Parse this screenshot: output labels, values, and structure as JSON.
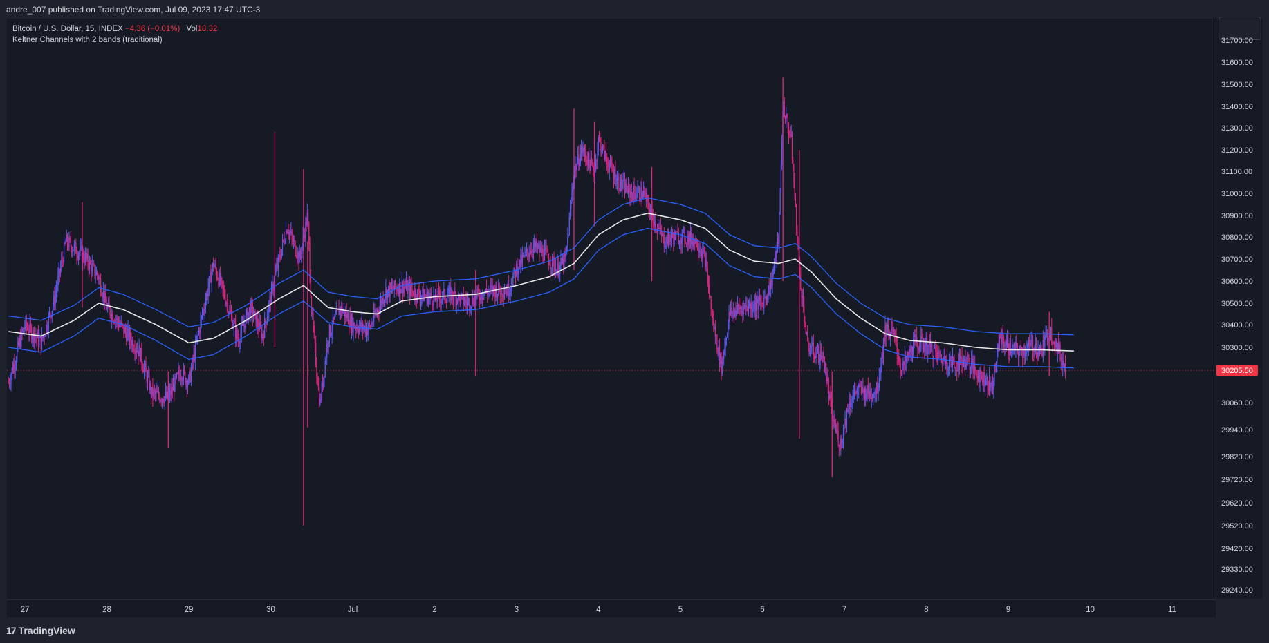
{
  "header": {
    "attribution": "andre_007 published on TradingView.com, Jul 09, 2023 17:47 UTC-3"
  },
  "legend": {
    "symbol": "Bitcoin / U.S. Dollar, 15, INDEX",
    "change": "−4.36 (−0.01%)",
    "vol_label": "Vol",
    "vol_value": "18.32",
    "indicator": "Keltner Channels with 2 bands (traditional)"
  },
  "footer": {
    "brand": "TradingView",
    "logo_glyph": "17"
  },
  "colors": {
    "background": "#161a25",
    "up_candle": "#5b5bf0",
    "down_candle": "#d8287e",
    "keltner_basis": "#e8e8e8",
    "keltner_bands": "#2962ff",
    "last_price": "#f23645"
  },
  "chart_data": {
    "type": "candlestick",
    "symbol": "Bitcoin / U.S. Dollar",
    "interval": "15",
    "exchange": "INDEX",
    "last_price": "30205.50",
    "y_tick_labels": [
      "31700.00",
      "31600.00",
      "31500.00",
      "31400.00",
      "31300.00",
      "31200.00",
      "31100.00",
      "31000.00",
      "30900.00",
      "30800.00",
      "30700.00",
      "30600.00",
      "30500.00",
      "30400.00",
      "30300.00",
      "30205.50",
      "30060.00",
      "29940.00",
      "29820.00",
      "29720.00",
      "29620.00",
      "29520.00",
      "29420.00",
      "29330.00",
      "29240.00"
    ],
    "y_tick_values": [
      31700,
      31600,
      31500,
      31400,
      31300,
      31200,
      31100,
      31000,
      30900,
      30800,
      30700,
      30600,
      30500,
      30400,
      30300,
      30205.5,
      30060,
      29940,
      29820,
      29720,
      29620,
      29520,
      29420,
      29330,
      29240
    ],
    "x_tick_labels": [
      "27",
      "28",
      "29",
      "30",
      "Jul",
      "2",
      "3",
      "4",
      "5",
      "6",
      "7",
      "8",
      "9",
      "10",
      "11"
    ],
    "x_tick_days": [
      0,
      1,
      2,
      3,
      4,
      5,
      6,
      7,
      8,
      9,
      10,
      11,
      12,
      13,
      14
    ],
    "x_day_range": [
      -0.2,
      14.5
    ],
    "y_range": [
      29170,
      31720
    ],
    "price_path": [
      [
        -0.2,
        30150
      ],
      [
        0.0,
        30400
      ],
      [
        0.2,
        30320
      ],
      [
        0.35,
        30500
      ],
      [
        0.5,
        30780
      ],
      [
        0.7,
        30720
      ],
      [
        0.9,
        30620
      ],
      [
        1.0,
        30480
      ],
      [
        1.2,
        30380
      ],
      [
        1.4,
        30280
      ],
      [
        1.55,
        30100
      ],
      [
        1.75,
        30080
      ],
      [
        1.9,
        30200
      ],
      [
        2.0,
        30150
      ],
      [
        2.15,
        30420
      ],
      [
        2.3,
        30680
      ],
      [
        2.45,
        30520
      ],
      [
        2.6,
        30330
      ],
      [
        2.75,
        30480
      ],
      [
        2.9,
        30350
      ],
      [
        3.05,
        30620
      ],
      [
        3.2,
        30850
      ],
      [
        3.35,
        30700
      ],
      [
        3.45,
        30900
      ],
      [
        3.5,
        30450
      ],
      [
        3.6,
        30050
      ],
      [
        3.7,
        30350
      ],
      [
        3.85,
        30480
      ],
      [
        4.0,
        30400
      ],
      [
        4.2,
        30380
      ],
      [
        4.4,
        30550
      ],
      [
        4.6,
        30580
      ],
      [
        4.8,
        30540
      ],
      [
        5.0,
        30520
      ],
      [
        5.2,
        30540
      ],
      [
        5.4,
        30500
      ],
      [
        5.55,
        30540
      ],
      [
        5.7,
        30560
      ],
      [
        5.9,
        30560
      ],
      [
        6.0,
        30660
      ],
      [
        6.2,
        30760
      ],
      [
        6.35,
        30720
      ],
      [
        6.5,
        30650
      ],
      [
        6.6,
        30700
      ],
      [
        6.7,
        31100
      ],
      [
        6.8,
        31200
      ],
      [
        6.95,
        31100
      ],
      [
        7.0,
        31250
      ],
      [
        7.1,
        31150
      ],
      [
        7.25,
        31050
      ],
      [
        7.4,
        31000
      ],
      [
        7.55,
        31000
      ],
      [
        7.65,
        30900
      ],
      [
        7.8,
        30780
      ],
      [
        7.9,
        30800
      ],
      [
        8.05,
        30800
      ],
      [
        8.2,
        30780
      ],
      [
        8.3,
        30700
      ],
      [
        8.4,
        30400
      ],
      [
        8.5,
        30220
      ],
      [
        8.6,
        30450
      ],
      [
        8.75,
        30480
      ],
      [
        9.0,
        30500
      ],
      [
        9.1,
        30580
      ],
      [
        9.2,
        30800
      ],
      [
        9.25,
        31400
      ],
      [
        9.35,
        31250
      ],
      [
        9.45,
        30650
      ],
      [
        9.55,
        30300
      ],
      [
        9.65,
        30280
      ],
      [
        9.75,
        30250
      ],
      [
        9.85,
        30000
      ],
      [
        9.95,
        29870
      ],
      [
        10.05,
        30050
      ],
      [
        10.15,
        30120
      ],
      [
        10.3,
        30100
      ],
      [
        10.4,
        30120
      ],
      [
        10.5,
        30380
      ],
      [
        10.6,
        30360
      ],
      [
        10.7,
        30200
      ],
      [
        10.85,
        30320
      ],
      [
        11.0,
        30310
      ],
      [
        11.15,
        30260
      ],
      [
        11.35,
        30230
      ],
      [
        11.5,
        30250
      ],
      [
        11.6,
        30200
      ],
      [
        11.7,
        30170
      ],
      [
        11.8,
        30130
      ],
      [
        11.9,
        30350
      ],
      [
        12.0,
        30300
      ],
      [
        12.15,
        30280
      ],
      [
        12.3,
        30310
      ],
      [
        12.4,
        30280
      ],
      [
        12.5,
        30380
      ],
      [
        12.6,
        30300
      ],
      [
        12.7,
        30205
      ]
    ],
    "spikes": [
      [
        0.7,
        30960,
        30480
      ],
      [
        1.75,
        30200,
        29860
      ],
      [
        3.05,
        31280,
        30300
      ],
      [
        3.4,
        31110,
        29520
      ],
      [
        3.45,
        30780,
        29950
      ],
      [
        5.5,
        30650,
        30180
      ],
      [
        6.7,
        31390,
        30650
      ],
      [
        6.95,
        31330,
        30850
      ],
      [
        7.65,
        31120,
        30600
      ],
      [
        9.25,
        31530,
        30600
      ],
      [
        9.45,
        31200,
        29900
      ],
      [
        9.85,
        30200,
        29730
      ],
      [
        12.5,
        30460,
        30180
      ]
    ],
    "keltner_basis": [
      [
        -0.2,
        30370
      ],
      [
        0.2,
        30350
      ],
      [
        0.6,
        30420
      ],
      [
        0.9,
        30500
      ],
      [
        1.2,
        30470
      ],
      [
        1.6,
        30400
      ],
      [
        2.0,
        30320
      ],
      [
        2.3,
        30340
      ],
      [
        2.7,
        30420
      ],
      [
        3.1,
        30520
      ],
      [
        3.4,
        30580
      ],
      [
        3.7,
        30480
      ],
      [
        4.0,
        30460
      ],
      [
        4.3,
        30450
      ],
      [
        4.6,
        30510
      ],
      [
        5.0,
        30530
      ],
      [
        5.5,
        30540
      ],
      [
        6.0,
        30580
      ],
      [
        6.4,
        30620
      ],
      [
        6.7,
        30680
      ],
      [
        7.0,
        30810
      ],
      [
        7.3,
        30880
      ],
      [
        7.6,
        30910
      ],
      [
        8.0,
        30880
      ],
      [
        8.3,
        30840
      ],
      [
        8.6,
        30740
      ],
      [
        8.9,
        30690
      ],
      [
        9.2,
        30680
      ],
      [
        9.4,
        30700
      ],
      [
        9.6,
        30640
      ],
      [
        9.9,
        30520
      ],
      [
        10.2,
        30430
      ],
      [
        10.5,
        30360
      ],
      [
        10.8,
        30330
      ],
      [
        11.2,
        30320
      ],
      [
        11.6,
        30300
      ],
      [
        12.0,
        30290
      ],
      [
        12.4,
        30290
      ],
      [
        12.8,
        30285
      ]
    ],
    "keltner_band_width": 70,
    "ylabel": "",
    "xlabel": "",
    "grid": false
  }
}
